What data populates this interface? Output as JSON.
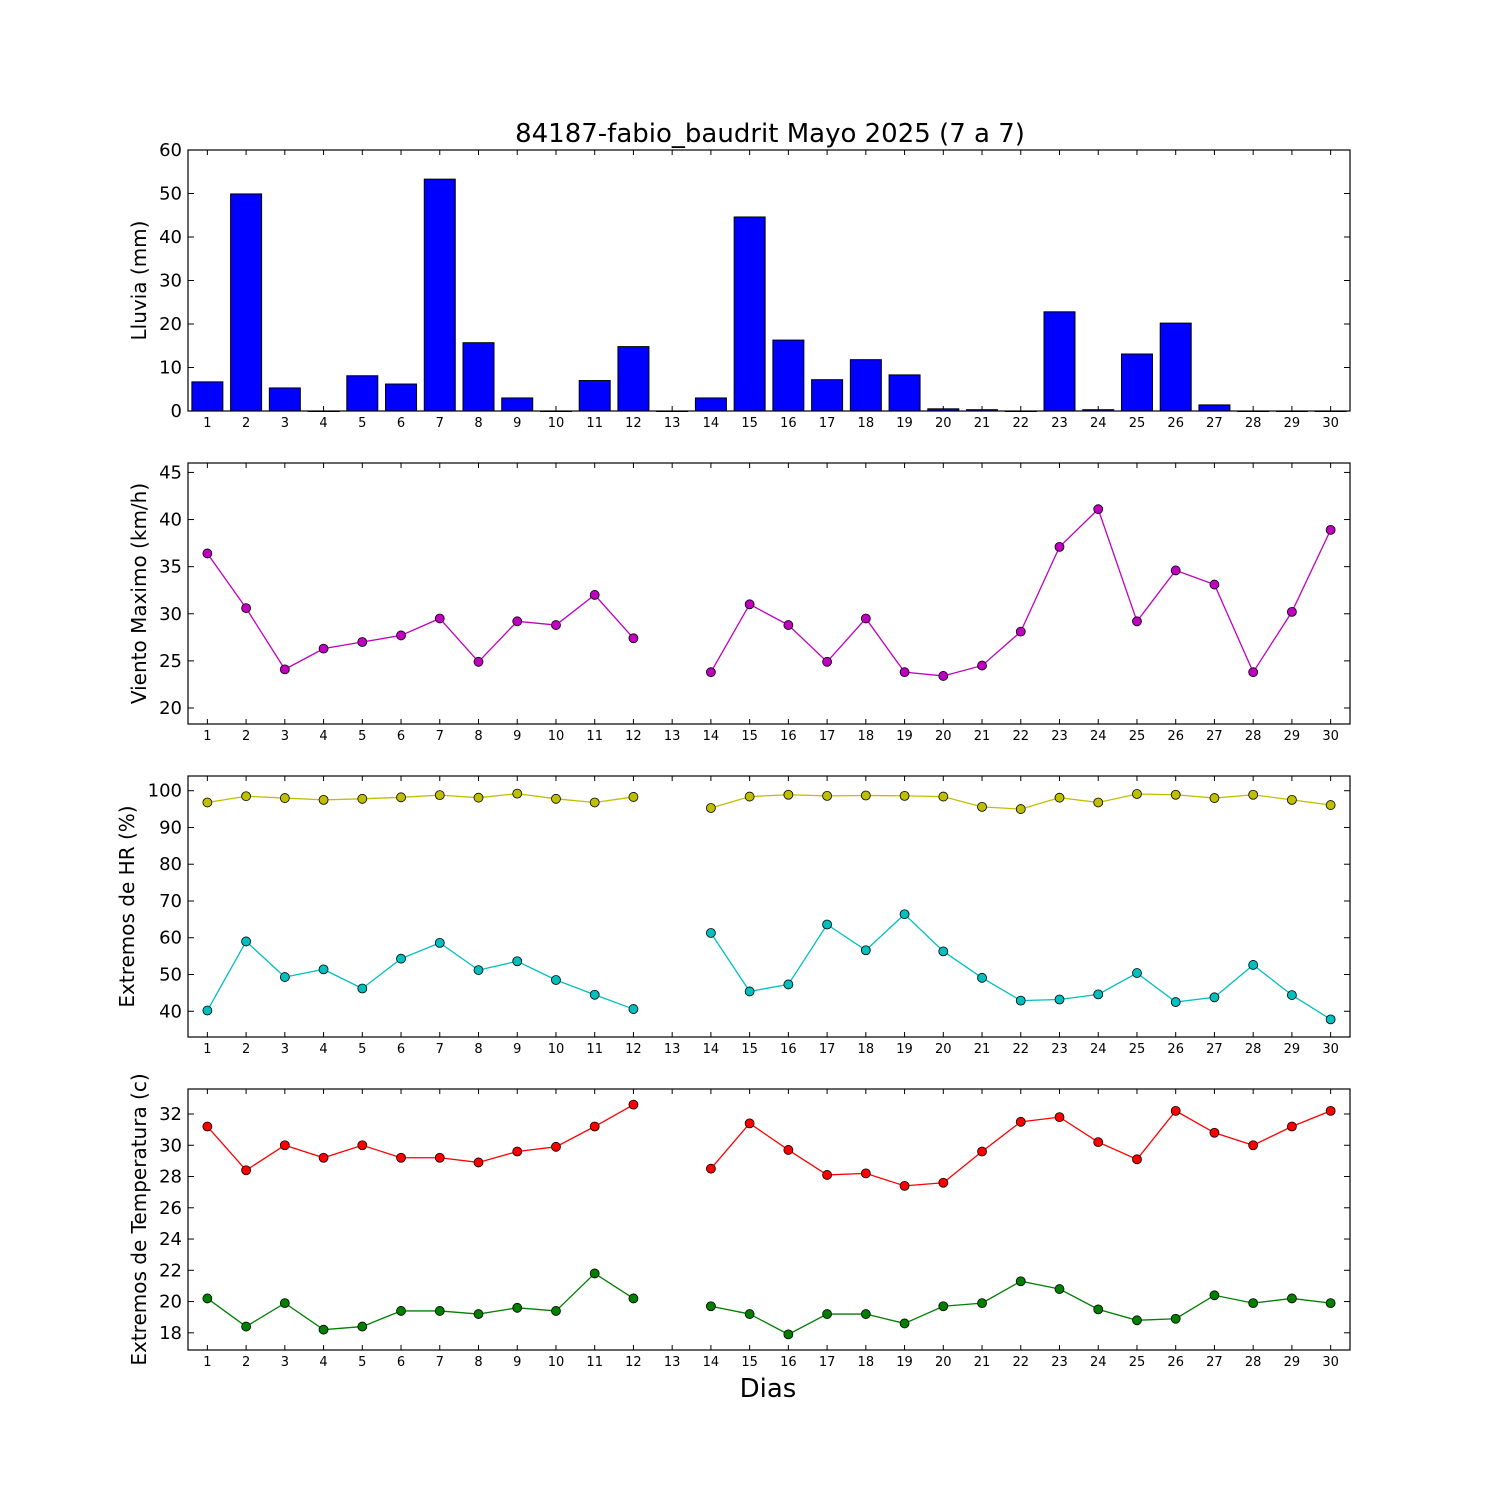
{
  "chart_data": {
    "title": "84187-fabio_baudrit Mayo 2025  (7 a 7)",
    "xlabel": "Dias",
    "days": [
      1,
      2,
      3,
      4,
      5,
      6,
      7,
      8,
      9,
      10,
      11,
      12,
      13,
      14,
      15,
      16,
      17,
      18,
      19,
      20,
      21,
      22,
      23,
      24,
      25,
      26,
      27,
      28,
      29,
      30
    ],
    "panels": [
      {
        "type": "bar",
        "ylabel": "Lluvia (mm)",
        "ylim": [
          0,
          60
        ],
        "yticks": [
          0,
          10,
          20,
          30,
          40,
          50,
          60
        ],
        "series": [
          {
            "color": "#0000ff",
            "values": [
              6.7,
              49.9,
              5.3,
              0,
              8.1,
              6.2,
              53.3,
              15.7,
              3.0,
              0,
              7.0,
              14.8,
              0,
              3.0,
              44.6,
              16.3,
              7.2,
              11.8,
              8.3,
              0.5,
              0.3,
              0,
              22.8,
              0.3,
              13.1,
              20.2,
              1.4,
              0,
              0,
              0
            ]
          }
        ]
      },
      {
        "type": "line",
        "ylabel": "Viento Maximo (km/h)",
        "ylim": [
          18.3,
          46
        ],
        "yticks": [
          20,
          25,
          30,
          35,
          40,
          45
        ],
        "series": [
          {
            "color": "#bf00bf",
            "values": [
              36.4,
              30.6,
              24.1,
              26.3,
              27.0,
              27.7,
              29.5,
              24.9,
              29.2,
              28.8,
              32.0,
              27.4,
              null,
              23.8,
              31.0,
              28.8,
              24.9,
              29.5,
              23.8,
              23.4,
              24.5,
              28.1,
              37.1,
              41.1,
              29.2,
              34.6,
              33.1,
              23.8,
              30.2,
              38.9
            ]
          }
        ]
      },
      {
        "type": "line",
        "ylabel": "Extremos de HR (%)",
        "ylim": [
          33,
          104
        ],
        "yticks": [
          40,
          50,
          60,
          70,
          80,
          90,
          100
        ],
        "series": [
          {
            "color": "#bfbf00",
            "values": [
              96.8,
              98.5,
              98.0,
              97.5,
              97.8,
              98.2,
              98.8,
              98.1,
              99.2,
              97.8,
              96.8,
              98.3,
              null,
              95.3,
              98.4,
              98.9,
              98.6,
              98.7,
              98.6,
              98.4,
              95.6,
              95.0,
              98.1,
              96.8,
              99.1,
              98.9,
              98.0,
              98.9,
              97.5,
              96.1
            ]
          },
          {
            "color": "#00bfbf",
            "values": [
              40.2,
              59.0,
              49.3,
              51.4,
              46.2,
              54.3,
              58.6,
              51.2,
              53.6,
              48.5,
              44.5,
              40.6,
              null,
              61.3,
              45.4,
              47.3,
              63.6,
              56.6,
              66.4,
              56.3,
              49.1,
              42.9,
              43.2,
              44.6,
              50.4,
              42.5,
              43.8,
              52.6,
              44.4,
              37.8
            ]
          }
        ]
      },
      {
        "type": "line",
        "ylabel": "Extremos de Temperatura (c)",
        "ylim": [
          16.9,
          33.6
        ],
        "yticks": [
          18,
          20,
          22,
          24,
          26,
          28,
          30,
          32
        ],
        "series": [
          {
            "color": "#ff0000",
            "values": [
              31.2,
              28.4,
              30.0,
              29.2,
              30.0,
              29.2,
              29.2,
              28.9,
              29.6,
              29.9,
              31.2,
              32.6,
              null,
              28.5,
              31.4,
              29.7,
              28.1,
              28.2,
              27.4,
              27.6,
              29.6,
              31.5,
              31.8,
              30.2,
              29.1,
              32.2,
              30.8,
              30.0,
              31.2,
              32.2
            ]
          },
          {
            "color": "#007f00",
            "values": [
              20.2,
              18.4,
              19.9,
              18.2,
              18.4,
              19.4,
              19.4,
              19.2,
              19.6,
              19.4,
              21.8,
              20.2,
              null,
              19.7,
              19.2,
              17.9,
              19.2,
              19.2,
              18.6,
              19.7,
              19.9,
              21.3,
              20.8,
              19.5,
              18.8,
              18.9,
              20.4,
              19.9,
              20.2,
              19.9
            ]
          }
        ]
      }
    ]
  }
}
